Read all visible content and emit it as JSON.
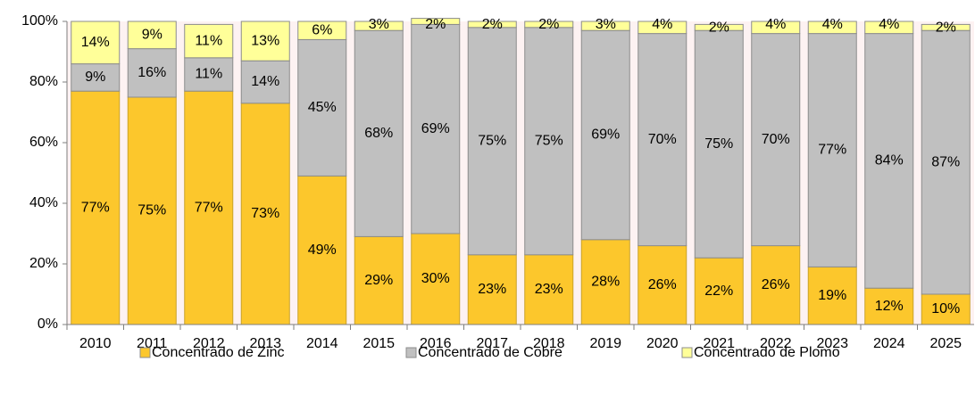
{
  "chart_data": {
    "type": "stacked_bar",
    "categories": [
      "2010",
      "2011",
      "2012",
      "2013",
      "2014",
      "2015",
      "2016",
      "2017",
      "2018",
      "2019",
      "2020",
      "2021",
      "2022",
      "2023",
      "2024",
      "2025"
    ],
    "series": [
      {
        "name": "Concentrado de Zinc",
        "color": "#fcc72c",
        "values": [
          77,
          75,
          77,
          73,
          49,
          29,
          30,
          23,
          23,
          28,
          26,
          22,
          26,
          19,
          12,
          10
        ],
        "value_labels": [
          "77%",
          "75%",
          "77%",
          "73%",
          "49%",
          "29%",
          "30%",
          "23%",
          "23%",
          "28%",
          "26%",
          "22%",
          "26%",
          "19%",
          "12%",
          "10%"
        ]
      },
      {
        "name": "Concentrado de Cobre",
        "color": "#c0c0c0",
        "values": [
          9,
          16,
          11,
          14,
          45,
          68,
          69,
          75,
          75,
          69,
          70,
          75,
          70,
          77,
          84,
          87
        ],
        "value_labels": [
          "9%",
          "16%",
          "11%",
          "14%",
          "45%",
          "68%",
          "69%",
          "75%",
          "75%",
          "69%",
          "70%",
          "75%",
          "70%",
          "77%",
          "84%",
          "87%"
        ]
      },
      {
        "name": "Concentrado de Plomo",
        "color": "#ffff99",
        "values": [
          14,
          9,
          11,
          13,
          6,
          3,
          2,
          2,
          2,
          3,
          4,
          2,
          4,
          4,
          4,
          2
        ],
        "value_labels": [
          "14%",
          "9%",
          "11%",
          "13%",
          "6%",
          "3%",
          "2%",
          "2%",
          "2%",
          "3%",
          "4%",
          "2%",
          "4%",
          "4%",
          "4%",
          "2%"
        ]
      }
    ],
    "ylim": [
      0,
      100
    ],
    "yticks": [
      {
        "value": 0,
        "label": "0%"
      },
      {
        "value": 20,
        "label": "20%"
      },
      {
        "value": 40,
        "label": "40%"
      },
      {
        "value": 60,
        "label": "60%"
      },
      {
        "value": 80,
        "label": "80%"
      },
      {
        "value": 100,
        "label": "100%"
      }
    ],
    "legend": "bottom"
  }
}
